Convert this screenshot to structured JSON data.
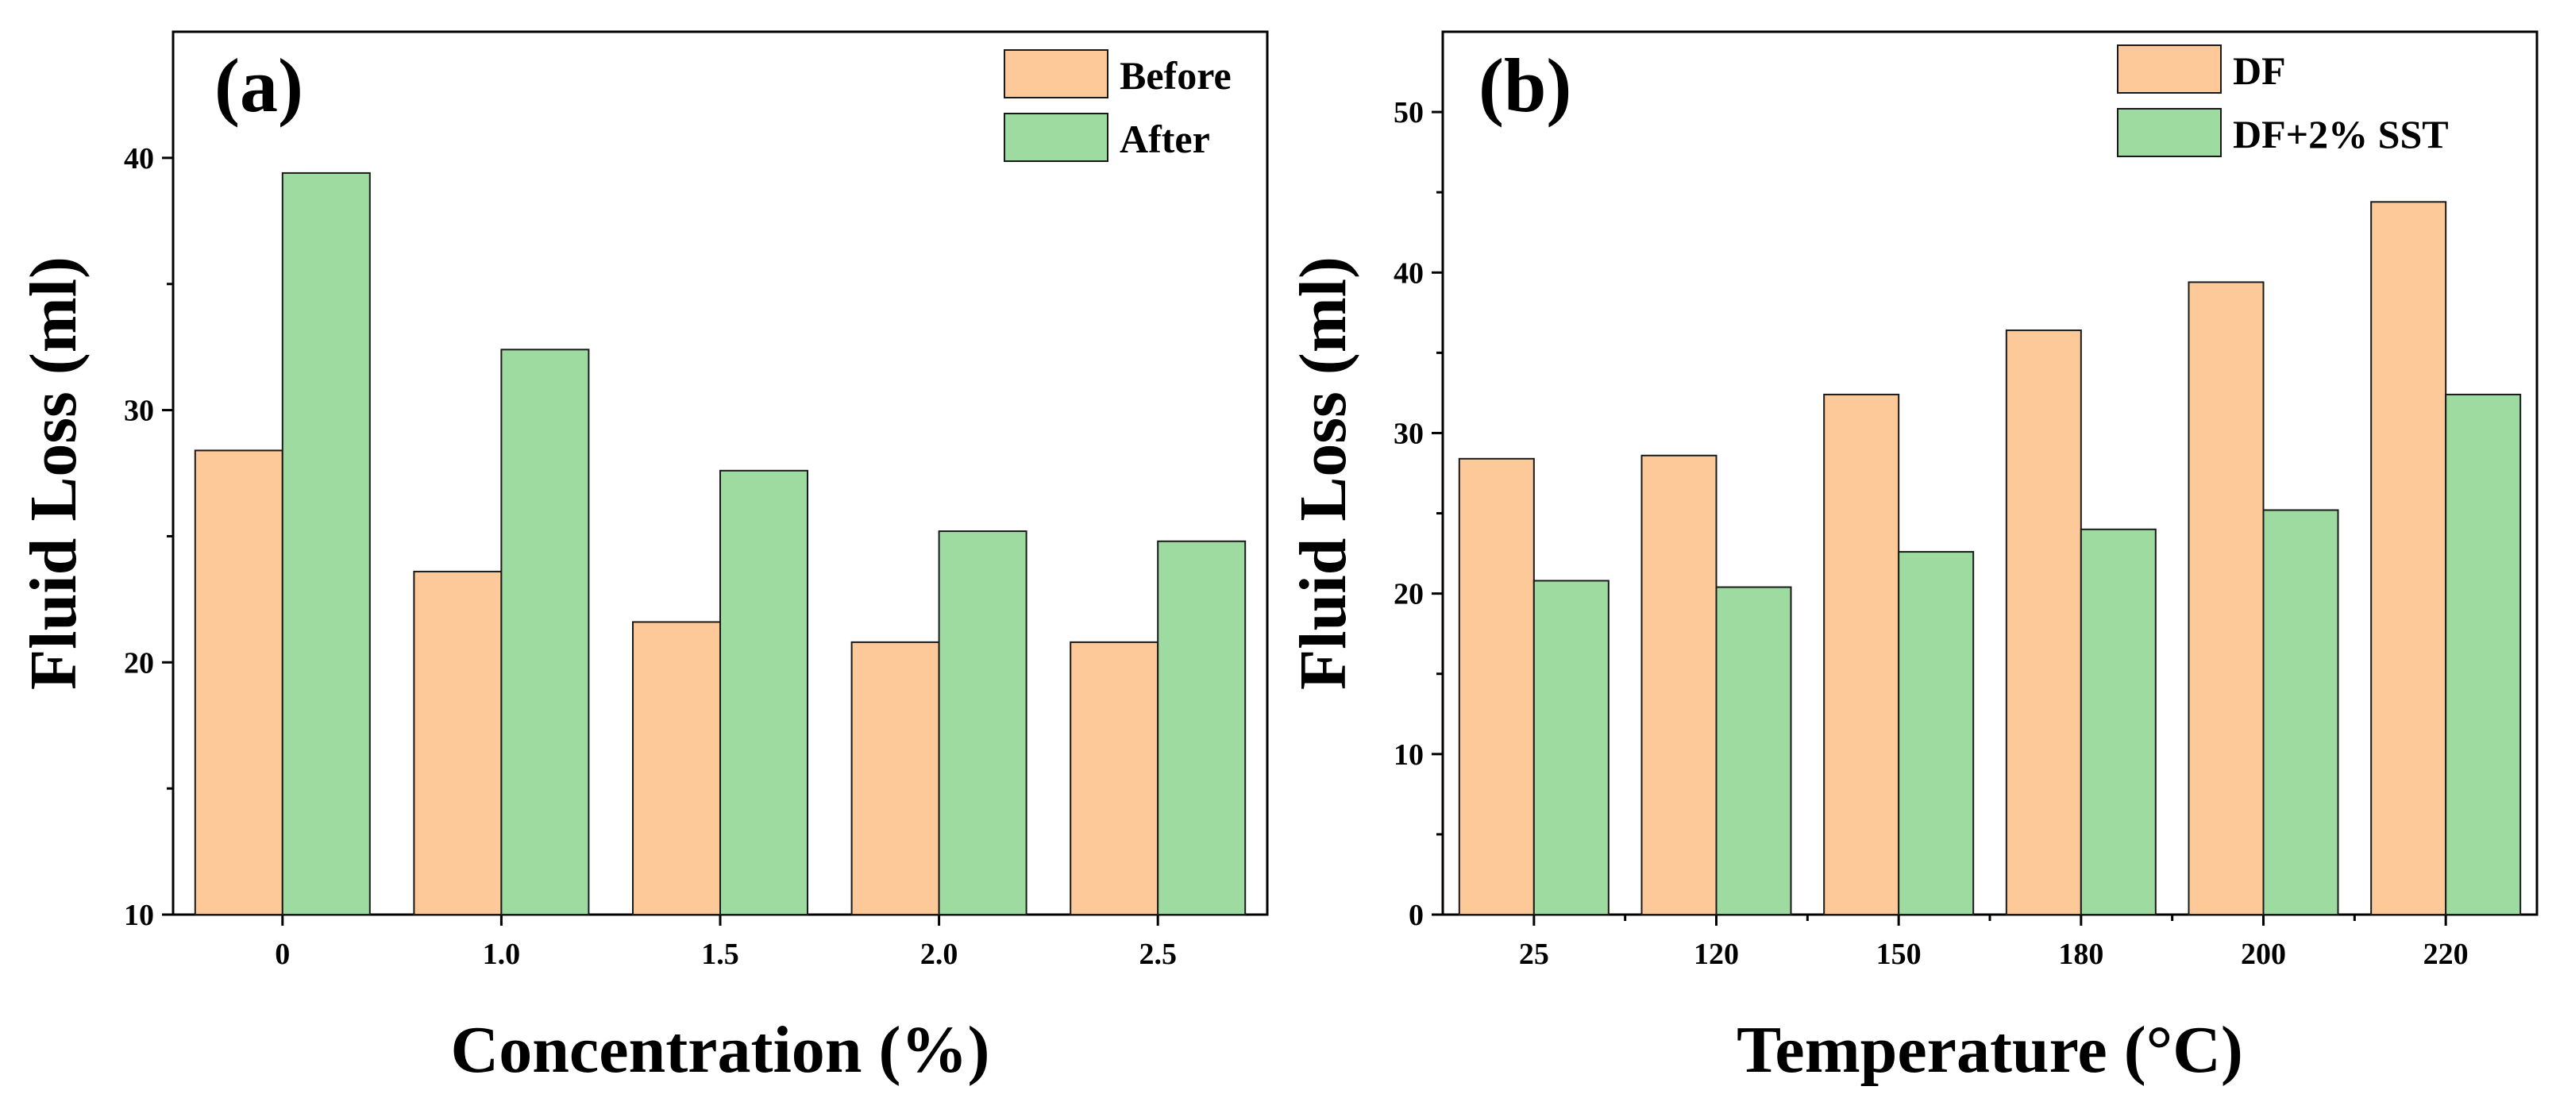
{
  "chart_data": [
    {
      "type": "bar",
      "panel_label": "(a)",
      "title": "",
      "xlabel": "Concentration (%)",
      "ylabel": "Fluid Loss (ml)",
      "categories": [
        "0",
        "1.0",
        "1.5",
        "2.0",
        "2.5"
      ],
      "ylim": [
        10,
        45
      ],
      "yticks": [
        10,
        20,
        30,
        40
      ],
      "series": [
        {
          "name": "Before",
          "color": "#FDC999",
          "values": [
            28.4,
            23.6,
            21.6,
            20.8,
            20.8
          ]
        },
        {
          "name": "After",
          "color": "#9DDBA0",
          "values": [
            39.4,
            32.4,
            27.6,
            25.2,
            24.8
          ]
        }
      ],
      "legend_position": "top-right",
      "grid": false
    },
    {
      "type": "bar",
      "panel_label": "(b)",
      "title": "",
      "xlabel": "Temperature (°C)",
      "ylabel": "Fluid Loss (ml)",
      "categories": [
        "25",
        "120",
        "150",
        "180",
        "200",
        "220"
      ],
      "ylim": [
        0,
        55
      ],
      "yticks": [
        0,
        10,
        20,
        30,
        40,
        50
      ],
      "series": [
        {
          "name": "DF",
          "color": "#FDC999",
          "values": [
            28.4,
            28.6,
            32.4,
            36.4,
            39.4,
            44.4
          ]
        },
        {
          "name": "DF+2% SST",
          "color": "#9DDBA0",
          "values": [
            20.8,
            20.4,
            22.6,
            24.0,
            25.2,
            32.4
          ]
        }
      ],
      "legend_position": "top-right",
      "grid": false
    }
  ]
}
